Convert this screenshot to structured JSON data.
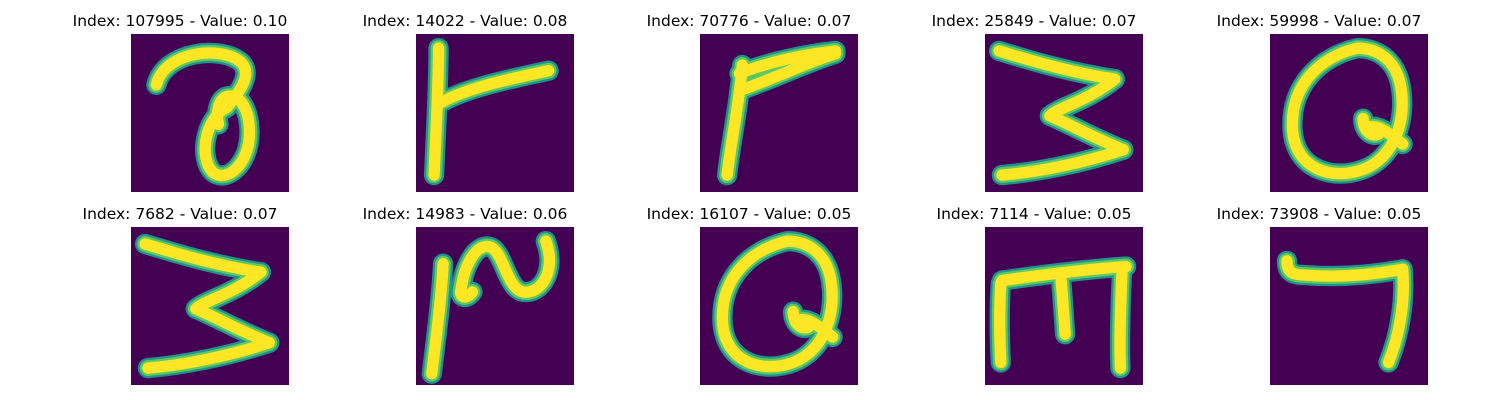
{
  "colors": {
    "background": "#440154",
    "stroke_core": "#fde725",
    "stroke_mid": "#5ec962",
    "stroke_edge": "#21918c"
  },
  "panels": [
    {
      "title": "Index: 107995 - Value: 0.10",
      "glyph": "a-loop"
    },
    {
      "title": "Index: 14022 - Value: 0.08",
      "glyph": "t-cross"
    },
    {
      "title": "Index: 70776 - Value: 0.07",
      "glyph": "f-wedge"
    },
    {
      "title": "Index: 25849 - Value: 0.07",
      "glyph": "three-zigzag"
    },
    {
      "title": "Index: 59998 - Value: 0.07",
      "glyph": "q-loop"
    },
    {
      "title": "Index: 7682 - Value: 0.07",
      "glyph": "three-zigzag"
    },
    {
      "title": "Index: 14983 - Value: 0.06",
      "glyph": "n-wave"
    },
    {
      "title": "Index: 16107 - Value: 0.05",
      "glyph": "q-loop"
    },
    {
      "title": "Index: 7114 - Value: 0.05",
      "glyph": "m-comb"
    },
    {
      "title": "Index: 73908 - Value: 0.05",
      "glyph": "hook"
    }
  ]
}
